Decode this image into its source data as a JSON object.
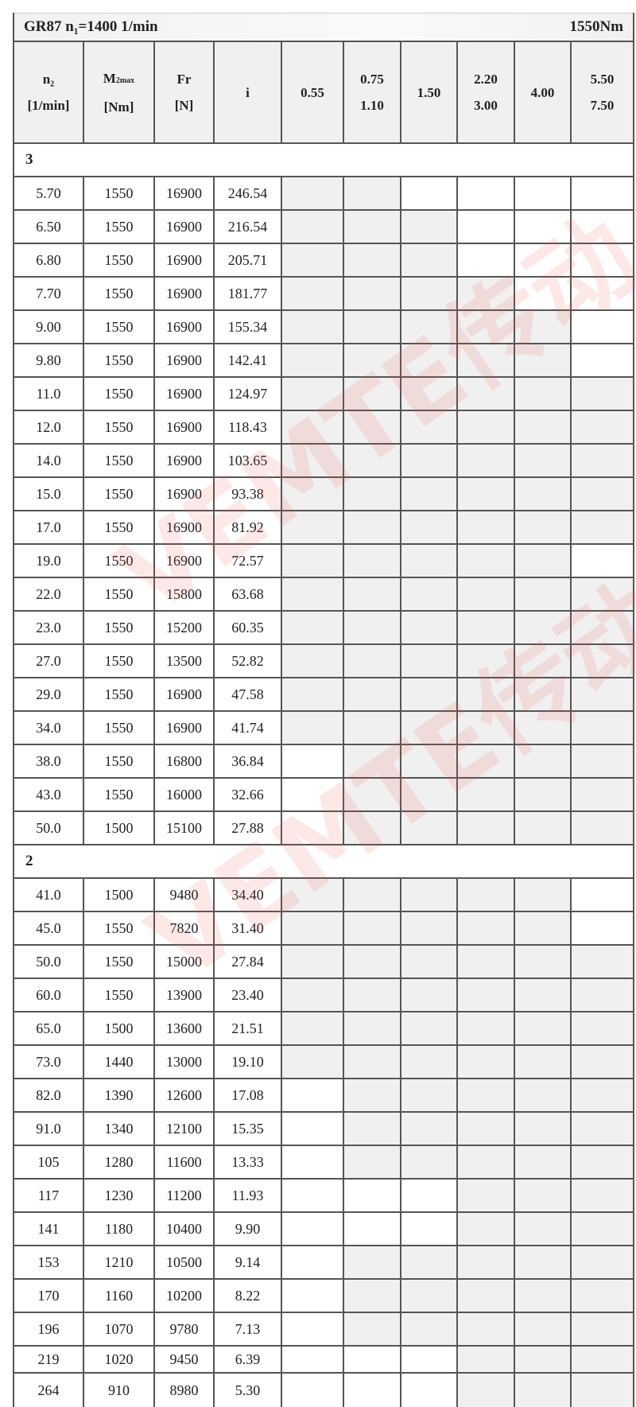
{
  "title": {
    "left": "GR87 n₁=1400 1/min",
    "right": "1550Nm"
  },
  "header": {
    "n2": [
      "n₂",
      "[1/min]"
    ],
    "m2max": [
      "M",
      "2max",
      "[Nm]"
    ],
    "fr": [
      "Fr",
      "[N]"
    ],
    "i": "i",
    "powers": [
      [
        "0.55"
      ],
      [
        "0.75",
        "1.10"
      ],
      [
        "1.50"
      ],
      [
        "2.20",
        "3.00"
      ],
      [
        "4.00"
      ],
      [
        "5.50",
        "7.50"
      ]
    ]
  },
  "watermark": "VEMTE传动",
  "colors": {
    "shaded": "#f0f0f0",
    "grid": "#555555",
    "watermark": "#f05050"
  },
  "sections": [
    {
      "label": "3",
      "rows": [
        {
          "n2": "5.70",
          "m2": "1550",
          "fr": "16900",
          "i": "246.54",
          "shade": [
            1,
            1,
            0,
            0,
            0,
            0
          ]
        },
        {
          "n2": "6.50",
          "m2": "1550",
          "fr": "16900",
          "i": "216.54",
          "shade": [
            1,
            1,
            1,
            0,
            0,
            0
          ]
        },
        {
          "n2": "6.80",
          "m2": "1550",
          "fr": "16900",
          "i": "205.71",
          "shade": [
            1,
            1,
            1,
            0,
            0,
            0
          ]
        },
        {
          "n2": "7.70",
          "m2": "1550",
          "fr": "16900",
          "i": "181.77",
          "shade": [
            1,
            1,
            1,
            1,
            0,
            0
          ]
        },
        {
          "n2": "9.00",
          "m2": "1550",
          "fr": "16900",
          "i": "155.34",
          "shade": [
            1,
            1,
            1,
            1,
            1,
            0
          ]
        },
        {
          "n2": "9.80",
          "m2": "1550",
          "fr": "16900",
          "i": "142.41",
          "shade": [
            1,
            1,
            1,
            1,
            1,
            0
          ]
        },
        {
          "n2": "11.0",
          "m2": "1550",
          "fr": "16900",
          "i": "124.97",
          "shade": [
            1,
            1,
            1,
            1,
            1,
            1
          ]
        },
        {
          "n2": "12.0",
          "m2": "1550",
          "fr": "16900",
          "i": "118.43",
          "shade": [
            1,
            1,
            1,
            1,
            1,
            1
          ]
        },
        {
          "n2": "14.0",
          "m2": "1550",
          "fr": "16900",
          "i": "103.65",
          "shade": [
            1,
            1,
            1,
            1,
            1,
            1
          ]
        },
        {
          "n2": "15.0",
          "m2": "1550",
          "fr": "16900",
          "i": "93.38",
          "shade": [
            1,
            1,
            1,
            1,
            1,
            1
          ]
        },
        {
          "n2": "17.0",
          "m2": "1550",
          "fr": "16900",
          "i": "81.92",
          "shade": [
            1,
            1,
            1,
            1,
            1,
            1
          ]
        },
        {
          "n2": "19.0",
          "m2": "1550",
          "fr": "16900",
          "i": "72.57",
          "shade": [
            1,
            1,
            1,
            1,
            1,
            0
          ]
        },
        {
          "n2": "22.0",
          "m2": "1550",
          "fr": "15800",
          "i": "63.68",
          "shade": [
            1,
            1,
            1,
            1,
            1,
            1
          ]
        },
        {
          "n2": "23.0",
          "m2": "1550",
          "fr": "15200",
          "i": "60.35",
          "shade": [
            1,
            1,
            1,
            1,
            1,
            1
          ]
        },
        {
          "n2": "27.0",
          "m2": "1550",
          "fr": "13500",
          "i": "52.82",
          "shade": [
            1,
            1,
            1,
            1,
            1,
            1
          ]
        },
        {
          "n2": "29.0",
          "m2": "1550",
          "fr": "16900",
          "i": "47.58",
          "shade": [
            1,
            1,
            1,
            1,
            1,
            1
          ]
        },
        {
          "n2": "34.0",
          "m2": "1550",
          "fr": "16900",
          "i": "41.74",
          "shade": [
            1,
            1,
            1,
            1,
            1,
            1
          ]
        },
        {
          "n2": "38.0",
          "m2": "1550",
          "fr": "16800",
          "i": "36.84",
          "shade": [
            0,
            1,
            1,
            1,
            1,
            1
          ]
        },
        {
          "n2": "43.0",
          "m2": "1550",
          "fr": "16000",
          "i": "32.66",
          "shade": [
            0,
            1,
            1,
            1,
            1,
            1
          ]
        },
        {
          "n2": "50.0",
          "m2": "1500",
          "fr": "15100",
          "i": "27.88",
          "shade": [
            0,
            1,
            1,
            1,
            1,
            1
          ]
        }
      ]
    },
    {
      "label": "2",
      "rows": [
        {
          "n2": "41.0",
          "m2": "1500",
          "fr": "9480",
          "i": "34.40",
          "shade": [
            1,
            1,
            1,
            1,
            1,
            0
          ]
        },
        {
          "n2": "45.0",
          "m2": "1550",
          "fr": "7820",
          "i": "31.40",
          "shade": [
            1,
            1,
            1,
            1,
            1,
            0
          ]
        },
        {
          "n2": "50.0",
          "m2": "1550",
          "fr": "15000",
          "i": "27.84",
          "shade": [
            1,
            1,
            1,
            1,
            1,
            1
          ]
        },
        {
          "n2": "60.0",
          "m2": "1550",
          "fr": "13900",
          "i": "23.40",
          "shade": [
            1,
            1,
            1,
            1,
            1,
            1
          ]
        },
        {
          "n2": "65.0",
          "m2": "1500",
          "fr": "13600",
          "i": "21.51",
          "shade": [
            1,
            1,
            1,
            1,
            1,
            1
          ]
        },
        {
          "n2": "73.0",
          "m2": "1440",
          "fr": "13000",
          "i": "19.10",
          "shade": [
            1,
            1,
            1,
            1,
            1,
            1
          ]
        },
        {
          "n2": "82.0",
          "m2": "1390",
          "fr": "12600",
          "i": "17.08",
          "shade": [
            0,
            1,
            1,
            1,
            1,
            1
          ]
        },
        {
          "n2": "91.0",
          "m2": "1340",
          "fr": "12100",
          "i": "15.35",
          "shade": [
            0,
            1,
            1,
            1,
            1,
            1
          ]
        },
        {
          "n2": "105",
          "m2": "1280",
          "fr": "11600",
          "i": "13.33",
          "shade": [
            0,
            1,
            1,
            1,
            1,
            1
          ]
        },
        {
          "n2": "117",
          "m2": "1230",
          "fr": "11200",
          "i": "11.93",
          "shade": [
            0,
            0,
            0,
            1,
            1,
            1
          ]
        },
        {
          "n2": "141",
          "m2": "1180",
          "fr": "10400",
          "i": "9.90",
          "shade": [
            0,
            0,
            0,
            1,
            1,
            1
          ]
        },
        {
          "n2": "153",
          "m2": "1210",
          "fr": "10500",
          "i": "9.14",
          "shade": [
            0,
            1,
            1,
            1,
            1,
            1
          ]
        },
        {
          "n2": "170",
          "m2": "1160",
          "fr": "10200",
          "i": "8.22",
          "shade": [
            0,
            1,
            1,
            1,
            1,
            1
          ]
        },
        {
          "n2": "196",
          "m2": "1070",
          "fr": "9780",
          "i": "7.13",
          "shade": [
            0,
            1,
            1,
            1,
            1,
            1
          ]
        },
        {
          "n2": "219",
          "m2": "1020",
          "fr": "9450",
          "i": "6.39",
          "shade": [
            0,
            0,
            0,
            1,
            1,
            1
          ]
        },
        {
          "n2": "264",
          "m2": "910",
          "fr": "8980",
          "i": "5.30",
          "shade": [
            0,
            0,
            0,
            1,
            1,
            1
          ]
        }
      ]
    }
  ]
}
